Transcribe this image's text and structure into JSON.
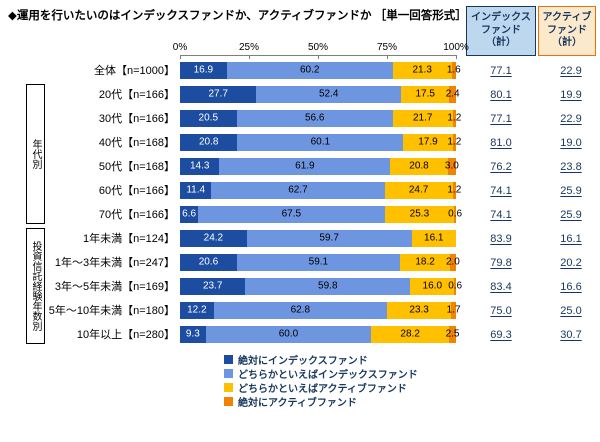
{
  "title": "◆運用を行いたいのはインデックスファンドか、アクティブファンドか ［単一回答形式］",
  "axis": {
    "ticks": [
      "0%",
      "25%",
      "50%",
      "75%",
      "100%"
    ]
  },
  "table": {
    "index_header": "インデックスファンド（計）",
    "active_header": "アクティブファンド（計）",
    "index_header_bg": "#BDD7EE",
    "index_header_border": "#17375E",
    "active_header_bg": "#FCE9CC",
    "active_header_border": "#E8720C",
    "totals_text_color": "#17375E"
  },
  "legend": [
    "絶対にインデックスファンド",
    "どちらかといえばインデックスファンド",
    "どちらかといえばアクティブファンド",
    "絶対にアクティブファンド"
  ],
  "groups": {
    "age": "年代別",
    "experience": "投資信託経験年数別"
  },
  "chart_data": {
    "type": "bar",
    "stacked": true,
    "orientation": "horizontal",
    "unit": "%",
    "x_range": [
      0,
      100
    ],
    "x_ticks": [
      "0%",
      "25%",
      "50%",
      "75%",
      "100%"
    ],
    "series_names": [
      "絶対にインデックスファンド",
      "どちらかといえばインデックスファンド",
      "どちらかといえばアクティブファンド",
      "絶対にアクティブファンド"
    ],
    "colors": [
      "#1C4DA0",
      "#6E96E0",
      "#FFC000",
      "#F08300"
    ],
    "rows": [
      {
        "label": "全体【n=1000】",
        "values": [
          "16.9",
          "60.2",
          "21.3",
          "1.6"
        ],
        "index_total": "77.1",
        "active_total": "22.9"
      },
      {
        "label": "20代【n=166】",
        "values": [
          "27.7",
          "52.4",
          "17.5",
          "2.4"
        ],
        "index_total": "80.1",
        "active_total": "19.9"
      },
      {
        "label": "30代【n=166】",
        "values": [
          "20.5",
          "56.6",
          "21.7",
          "1.2"
        ],
        "index_total": "77.1",
        "active_total": "22.9"
      },
      {
        "label": "40代【n=168】",
        "values": [
          "20.8",
          "60.1",
          "17.9",
          "1.2"
        ],
        "index_total": "81.0",
        "active_total": "19.0"
      },
      {
        "label": "50代【n=168】",
        "values": [
          "14.3",
          "61.9",
          "20.8",
          "3.0"
        ],
        "index_total": "76.2",
        "active_total": "23.8"
      },
      {
        "label": "60代【n=166】",
        "values": [
          "11.4",
          "62.7",
          "24.7",
          "1.2"
        ],
        "index_total": "74.1",
        "active_total": "25.9"
      },
      {
        "label": "70代【n=166】",
        "values": [
          "6.6",
          "67.5",
          "25.3",
          "0.6"
        ],
        "index_total": "74.1",
        "active_total": "25.9"
      },
      {
        "label": "1年未満【n=124】",
        "values": [
          "24.2",
          "59.7",
          "16.1",
          "0.0"
        ],
        "index_total": "83.9",
        "active_total": "16.1"
      },
      {
        "label": "1年～3年未満【n=247】",
        "values": [
          "20.6",
          "59.1",
          "18.2",
          "2.0"
        ],
        "index_total": "79.8",
        "active_total": "20.2"
      },
      {
        "label": "3年～5年未満【n=169】",
        "values": [
          "23.7",
          "59.8",
          "16.0",
          "0.6"
        ],
        "index_total": "83.4",
        "active_total": "16.6"
      },
      {
        "label": "5年～10年未満【n=180】",
        "values": [
          "12.2",
          "62.8",
          "23.3",
          "1.7"
        ],
        "index_total": "75.0",
        "active_total": "25.0"
      },
      {
        "label": "10年以上【n=280】",
        "values": [
          "9.3",
          "60.0",
          "28.2",
          "2.5"
        ],
        "index_total": "69.3",
        "active_total": "30.7"
      }
    ]
  }
}
